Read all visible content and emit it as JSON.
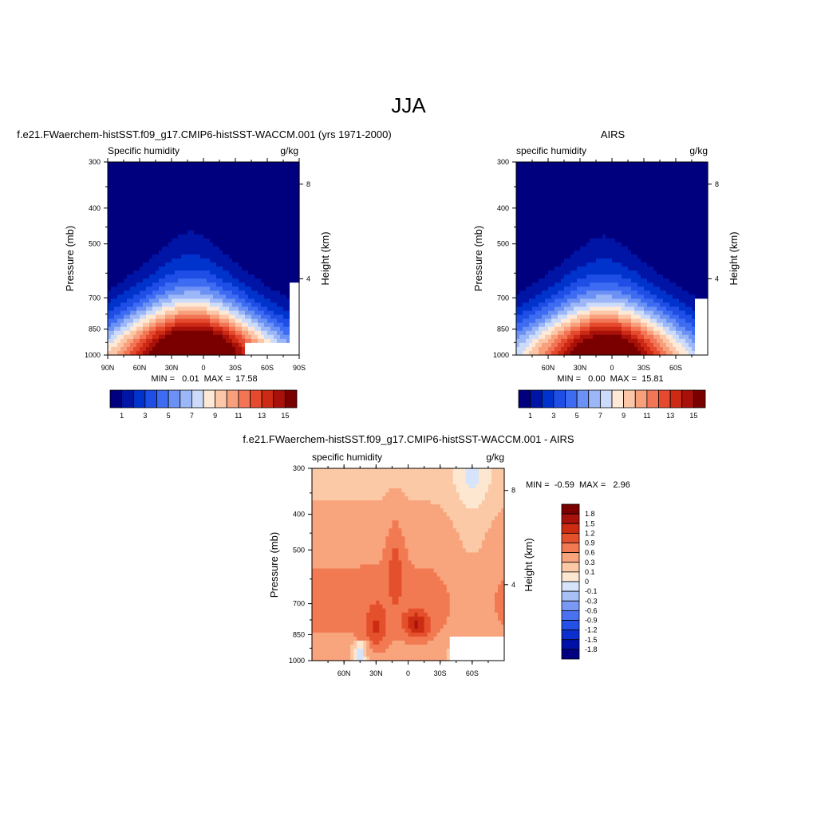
{
  "main_title": "JJA",
  "chart_data": [
    {
      "id": "model",
      "type": "heatmap",
      "title": "f.e21.FWaerchem-histSST.f09_g17.CMIP6-histSST-WACCM.001 (yrs 1971-2000)",
      "variable": "Specific humidity",
      "units": "g/kg",
      "ylabel": "Pressure (mb)",
      "ylabel_right": "Height (km)",
      "y_ticks": [
        "300",
        "400",
        "500",
        "700",
        "850",
        "1000"
      ],
      "y_values": [
        300,
        400,
        500,
        700,
        850,
        1000
      ],
      "x_ticks": [
        "90N",
        "60N",
        "30N",
        "0",
        "30S",
        "60S",
        "90S"
      ],
      "x_values": [
        90,
        60,
        30,
        0,
        -30,
        -60,
        -90
      ],
      "xlim": [
        90,
        -90
      ],
      "ylim": [
        1000,
        300
      ],
      "height_ticks": [
        "4",
        "8"
      ],
      "stats": "MIN =   0.01  MAX =  17.58",
      "min": 0.01,
      "max": 17.58,
      "peak_lat": 12,
      "colorbar_labels": [
        "1",
        "3",
        "5",
        "7",
        "9",
        "11",
        "13",
        "15"
      ],
      "levels": [
        1,
        2,
        3,
        4,
        5,
        6,
        7,
        8,
        9,
        10,
        11,
        12,
        13,
        14,
        15,
        16
      ]
    },
    {
      "id": "obs",
      "type": "heatmap",
      "title": "AIRS",
      "variable": "specific humidity",
      "units": "g/kg",
      "ylabel": "Pressure (mb)",
      "ylabel_right": "Height (km)",
      "y_ticks": [
        "300",
        "400",
        "500",
        "700",
        "850",
        "1000"
      ],
      "y_values": [
        300,
        400,
        500,
        700,
        850,
        1000
      ],
      "x_ticks": [
        "60N",
        "30N",
        "0",
        "30S",
        "60S"
      ],
      "x_values": [
        60,
        30,
        0,
        -30,
        -60
      ],
      "xlim": [
        90,
        -90
      ],
      "ylim": [
        1000,
        300
      ],
      "height_ticks": [
        "4",
        "8"
      ],
      "stats": "MIN =   0.00  MAX =  15.81",
      "min": 0.0,
      "max": 15.81,
      "peak_lat": 8,
      "colorbar_labels": [
        "1",
        "3",
        "5",
        "7",
        "9",
        "11",
        "13",
        "15"
      ],
      "levels": [
        1,
        2,
        3,
        4,
        5,
        6,
        7,
        8,
        9,
        10,
        11,
        12,
        13,
        14,
        15,
        16
      ]
    },
    {
      "id": "diff",
      "type": "heatmap",
      "title": "f.e21.FWaerchem-histSST.f09_g17.CMIP6-histSST-WACCM.001 - AIRS",
      "variable": "specific humidity",
      "units": "g/kg",
      "ylabel": "Pressure (mb)",
      "ylabel_right": "Height (km)",
      "y_ticks": [
        "300",
        "400",
        "500",
        "700",
        "850",
        "1000"
      ],
      "y_values": [
        300,
        400,
        500,
        700,
        850,
        1000
      ],
      "x_ticks": [
        "60N",
        "30N",
        "0",
        "30S",
        "60S"
      ],
      "x_values": [
        60,
        30,
        0,
        -30,
        -60
      ],
      "xlim": [
        90,
        -90
      ],
      "ylim": [
        1000,
        300
      ],
      "height_ticks": [
        "4",
        "8"
      ],
      "stats": "MIN =  -0.59  MAX =   2.96",
      "min": -0.59,
      "max": 2.96,
      "colorbar_labels": [
        "1.8",
        "1.5",
        "1.2",
        "0.9",
        "0.6",
        "0.3",
        "0.1",
        "0",
        "-0.1",
        "-0.3",
        "-0.6",
        "-0.9",
        "-1.2",
        "-1.5",
        "-1.8"
      ],
      "levels": [
        -1.8,
        -1.5,
        -1.2,
        -0.9,
        -0.6,
        -0.3,
        -0.1,
        0,
        0.1,
        0.3,
        0.6,
        0.9,
        1.2,
        1.5,
        1.8
      ]
    }
  ],
  "colors": {
    "scale16": [
      "#00007f",
      "#0015a6",
      "#0033cc",
      "#1f4ee6",
      "#3d6cf2",
      "#6b91f5",
      "#9cb7f7",
      "#cddbfa",
      "#fde9d6",
      "#fcc7a8",
      "#f8a07c",
      "#f27556",
      "#e64a2e",
      "#cc2a14",
      "#a8110a",
      "#7a0000"
    ],
    "diff16": [
      "#000080",
      "#0010a8",
      "#0a2ecf",
      "#2450e8",
      "#4a72f0",
      "#7a99f4",
      "#a9c0f7",
      "#d6e4fb",
      "#fde7d1",
      "#fbc9a6",
      "#f8a47c",
      "#f27a52",
      "#e5502c",
      "#cc2c12",
      "#a8120a",
      "#7a0000"
    ]
  }
}
